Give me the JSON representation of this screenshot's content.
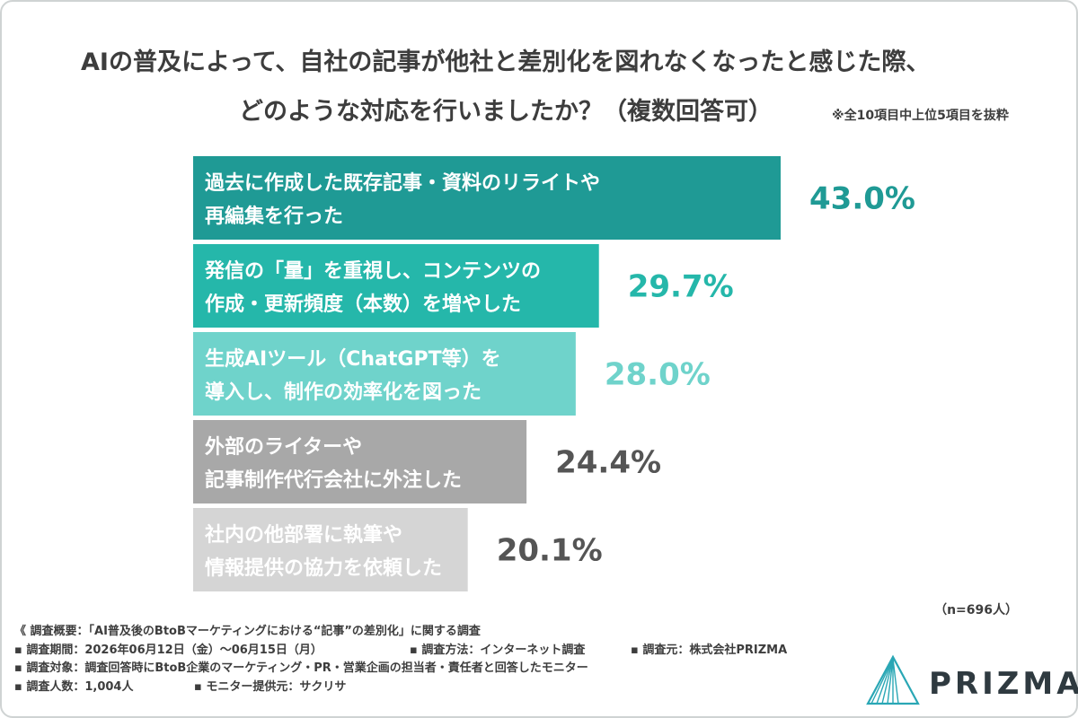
{
  "title_lines": [
    "AIの普及によって、自社の記事が他社と差別化を図れなくなったと感じた際、",
    "どのような対応を行いましたか？（複数回答可）"
  ],
  "title_note": "※全10項目中上位5項目を抜粋",
  "chart_data": {
    "type": "bar",
    "orientation": "horizontal",
    "unit": "%",
    "categories": [
      [
        "過去に作成した既存記事・資料のリライトや",
        "再編集を行った"
      ],
      [
        "発信の「量」を重視し、コンテンツの",
        "作成・更新頻度（本数）を増やした"
      ],
      [
        "生成AIツール（ChatGPT等）を",
        "導入し、制作の効率化を図った"
      ],
      [
        "外部のライターや",
        "記事制作代行会社に外注した"
      ],
      [
        "社内の他部署に執筆や",
        "情報提供の協力を依頼した"
      ]
    ],
    "values": [
      43.0,
      29.7,
      28.0,
      24.4,
      20.1
    ],
    "value_labels": [
      "43.0%",
      "29.7%",
      "28.0%",
      "24.4%",
      "20.1%"
    ],
    "bar_colors": [
      "#1f9a95",
      "#25b7aa",
      "#6fd3cb",
      "#a8a8a8",
      "#d5d5d5"
    ],
    "value_colors": [
      "#1f9a95",
      "#25b7aa",
      "#6fd3cb",
      "#555555",
      "#555555"
    ],
    "xlim": [
      0,
      43
    ],
    "sample_size": "（n=696人）"
  },
  "footer": {
    "summary": "《 調査概要：「AI普及後のBtoBマーケティングにおける“記事”の差別化」に関する調査",
    "period": "▪ 調査期間：2026年06月12日（金）〜06月15日（月）",
    "method": "▪ 調査方法：インターネット調査",
    "source": "▪ 調査元：株式会社PRIZMA",
    "target": "▪ 調査対象：調査回答時にBtoB企業のマーケティング・PR・営業企画の担当者・責任者と回答したモニター",
    "count": "▪ 調査人数：1,004人",
    "provider": "▪ モニター提供元：サクリサ"
  },
  "logo": {
    "text": "PRIZMA",
    "color": "#2aa7b5"
  }
}
